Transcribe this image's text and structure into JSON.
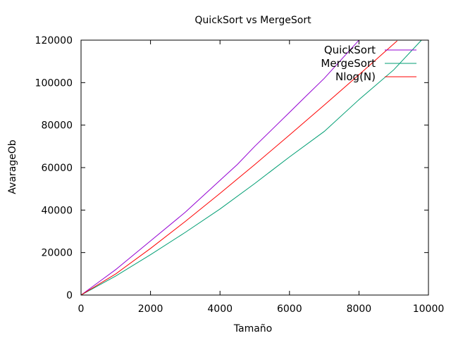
{
  "chart_data": {
    "type": "line",
    "title": "QuickSort vs MergeSort",
    "xlabel": "Tamaño",
    "ylabel": "AvarageOb",
    "xlim": [
      0,
      10000
    ],
    "ylim": [
      0,
      120000
    ],
    "x_ticks": [
      "0",
      "2000",
      "4000",
      "6000",
      "8000",
      "10000"
    ],
    "y_ticks": [
      "0",
      "20000",
      "40000",
      "60000",
      "80000",
      "100000",
      "120000"
    ],
    "grid": false,
    "legend_position": "top-right",
    "series": [
      {
        "name": "QuickSort",
        "color": "#9400d3",
        "points": [
          [
            0,
            0
          ],
          [
            1000,
            12000
          ],
          [
            2000,
            25500
          ],
          [
            3000,
            39000
          ],
          [
            4000,
            54000
          ],
          [
            4500,
            61500
          ],
          [
            5000,
            70000
          ],
          [
            5500,
            78000
          ],
          [
            6000,
            86000
          ],
          [
            6500,
            94000
          ],
          [
            7000,
            102000
          ],
          [
            7500,
            111000
          ],
          [
            8000,
            120000
          ]
        ]
      },
      {
        "name": "MergeSort",
        "color": "#009e73",
        "points": [
          [
            0,
            0
          ],
          [
            1000,
            9000
          ],
          [
            2000,
            19000
          ],
          [
            3000,
            29500
          ],
          [
            4000,
            40500
          ],
          [
            5000,
            52500
          ],
          [
            6000,
            65000
          ],
          [
            7000,
            77000
          ],
          [
            8000,
            92000
          ],
          [
            9000,
            106000
          ],
          [
            9800,
            120000
          ]
        ]
      },
      {
        "name": "Nlog(N)",
        "color": "#ff0000",
        "points": [
          [
            0,
            0
          ],
          [
            1000,
            9966
          ],
          [
            2000,
            21932
          ],
          [
            3000,
            34652
          ],
          [
            4000,
            47863
          ],
          [
            5000,
            61439
          ],
          [
            6000,
            75304
          ],
          [
            7000,
            89412
          ],
          [
            8000,
            103726
          ],
          [
            9000,
            118221
          ],
          [
            9100,
            119680
          ]
        ]
      }
    ]
  }
}
